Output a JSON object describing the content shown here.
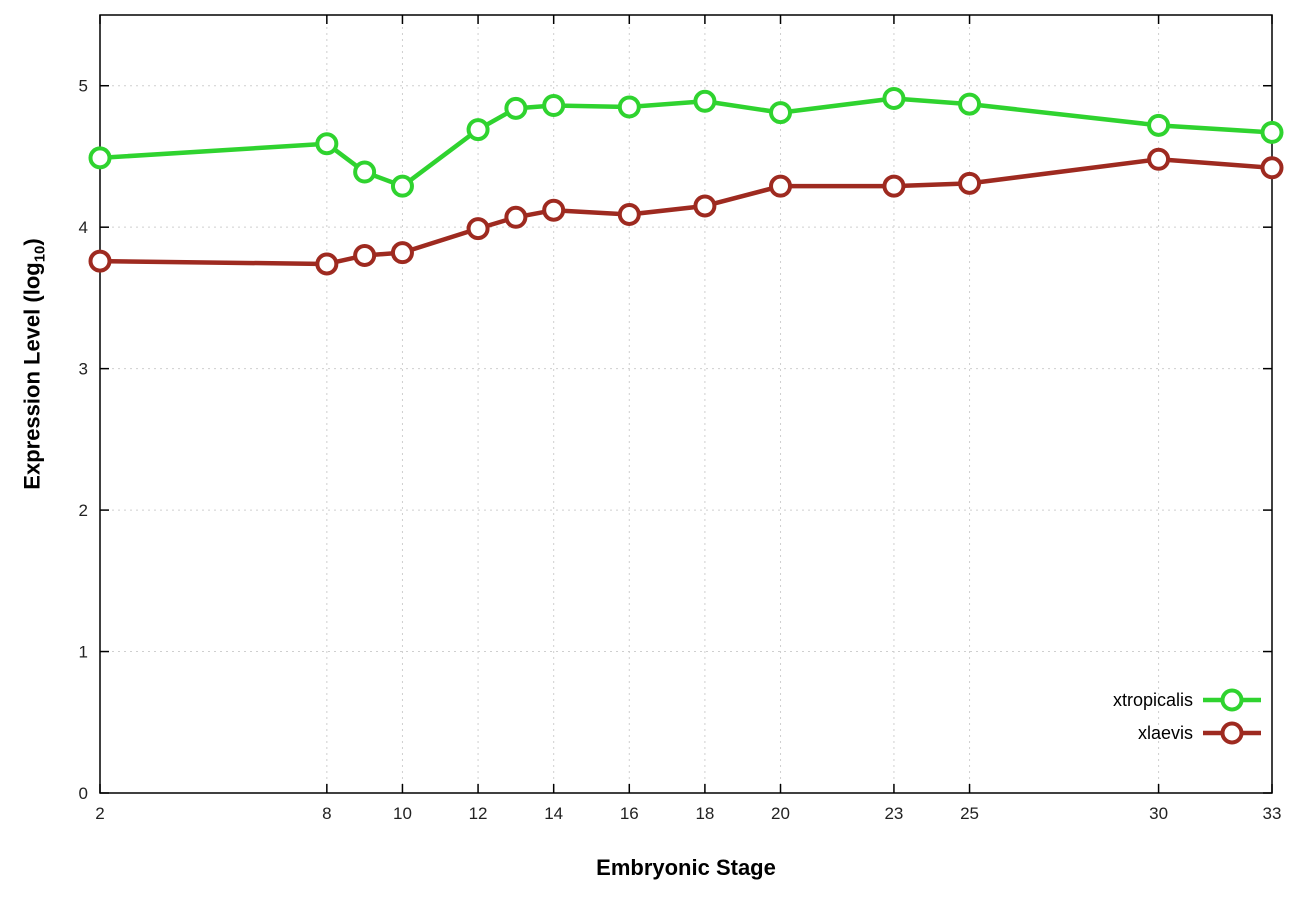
{
  "chart_data": {
    "type": "line",
    "x": [
      2,
      8,
      9,
      10,
      12,
      13,
      14,
      16,
      18,
      20,
      23,
      25,
      30,
      33
    ],
    "series": [
      {
        "name": "xtropicalis",
        "color": "#2fd32f",
        "values": [
          4.49,
          4.59,
          4.39,
          4.29,
          4.69,
          4.84,
          4.86,
          4.85,
          4.89,
          4.81,
          4.91,
          4.87,
          4.72,
          4.67
        ]
      },
      {
        "name": "xlaevis",
        "color": "#9e2a20",
        "values": [
          3.76,
          3.74,
          3.8,
          3.82,
          3.99,
          4.07,
          4.12,
          4.09,
          4.15,
          4.29,
          4.29,
          4.31,
          4.48,
          4.42
        ]
      }
    ],
    "xlabel": "Embryonic Stage",
    "ylabel": {
      "prefix": "Expression Level (log",
      "sub": "10",
      "suffix": ")"
    },
    "xlim": [
      2,
      33
    ],
    "ylim": [
      0,
      5.5
    ],
    "x_tick_values": [
      2,
      8,
      10,
      12,
      14,
      16,
      18,
      20,
      23,
      25,
      30,
      33
    ],
    "x_tick_labels": [
      "2",
      "8",
      "10",
      "12",
      "14",
      "16",
      "18",
      "20",
      "23",
      "25",
      "30",
      "33"
    ],
    "y_tick_values": [
      0,
      1,
      2,
      3,
      4,
      5
    ],
    "y_tick_labels": [
      "0",
      "1",
      "2",
      "3",
      "4",
      "5"
    ],
    "grid": true,
    "legend_position": "bottom-right-inside",
    "colors": {
      "grid": "#cfcfcf",
      "border": "#000000",
      "tick_text": "#222222",
      "marker_fill": "#ffffff"
    }
  }
}
